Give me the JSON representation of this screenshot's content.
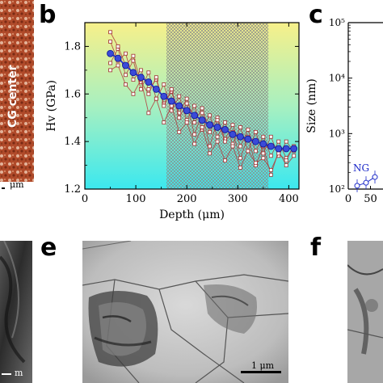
{
  "panels": {
    "a": {
      "overlay_text": "CG center",
      "scalebar_label": "μm"
    },
    "b": {
      "letter": "b",
      "chart_data": {
        "type": "line",
        "xlabel": "Depth (μm)",
        "ylabel": "Hv (GPa)",
        "xlim": [
          0,
          420
        ],
        "ylim": [
          1.2,
          1.9
        ],
        "x_ticks": [
          "0",
          "100",
          "200",
          "300",
          "400"
        ],
        "y_ticks": [
          "1.2",
          "1.4",
          "1.6",
          "1.8"
        ],
        "shaded_region": [
          160,
          360
        ],
        "series": [
          {
            "role": "average",
            "x": [
              50,
              65,
              80,
              95,
              110,
              125,
              140,
              155,
              170,
              185,
              200,
              215,
              230,
              245,
              260,
              275,
              290,
              305,
              320,
              335,
              350,
              365,
              380,
              395,
              410
            ],
            "values": [
              1.77,
              1.75,
              1.72,
              1.69,
              1.67,
              1.65,
              1.62,
              1.59,
              1.57,
              1.55,
              1.53,
              1.51,
              1.49,
              1.47,
              1.46,
              1.45,
              1.43,
              1.42,
              1.41,
              1.4,
              1.39,
              1.38,
              1.37,
              1.37,
              1.37
            ]
          },
          {
            "role": "individual",
            "x": [
              50,
              65,
              80,
              95,
              110,
              125,
              140,
              155,
              170,
              185,
              200,
              215,
              230,
              245,
              260,
              275,
              290,
              305,
              320,
              335,
              350,
              365,
              380,
              395,
              410
            ],
            "values": [
              1.82,
              1.74,
              1.77,
              1.66,
              1.7,
              1.62,
              1.66,
              1.56,
              1.61,
              1.52,
              1.58,
              1.48,
              1.54,
              1.44,
              1.5,
              1.41,
              1.47,
              1.38,
              1.45,
              1.36,
              1.42,
              1.34,
              1.4,
              1.33,
              1.38
            ]
          },
          {
            "role": "individual",
            "x": [
              50,
              65,
              80,
              95,
              110,
              125,
              140,
              155,
              170,
              185,
              200,
              215,
              230,
              245,
              260,
              275,
              290,
              305,
              320,
              335,
              350,
              365,
              380,
              395,
              410
            ],
            "values": [
              1.73,
              1.79,
              1.68,
              1.74,
              1.62,
              1.69,
              1.58,
              1.64,
              1.53,
              1.59,
              1.49,
              1.55,
              1.45,
              1.51,
              1.42,
              1.48,
              1.39,
              1.46,
              1.36,
              1.44,
              1.35,
              1.42,
              1.34,
              1.4,
              1.36
            ]
          },
          {
            "role": "individual",
            "x": [
              50,
              65,
              80,
              95,
              110,
              125,
              140,
              155,
              170,
              185,
              200,
              215,
              230,
              245,
              260,
              275,
              290,
              305,
              320,
              335,
              350,
              365,
              380,
              395,
              410
            ],
            "values": [
              1.86,
              1.8,
              1.72,
              1.76,
              1.65,
              1.6,
              1.67,
              1.55,
              1.62,
              1.5,
              1.56,
              1.43,
              1.52,
              1.38,
              1.49,
              1.4,
              1.44,
              1.33,
              1.42,
              1.3,
              1.38,
              1.26,
              1.36,
              1.3,
              1.34
            ]
          },
          {
            "role": "individual",
            "x": [
              50,
              65,
              80,
              95,
              110,
              125,
              140,
              155,
              170,
              185,
              200,
              215,
              230,
              245,
              260,
              275,
              290,
              305,
              320,
              335,
              350,
              365,
              380,
              395,
              410
            ],
            "values": [
              1.7,
              1.72,
              1.64,
              1.6,
              1.66,
              1.52,
              1.58,
              1.48,
              1.55,
              1.44,
              1.48,
              1.39,
              1.46,
              1.35,
              1.4,
              1.32,
              1.38,
              1.29,
              1.36,
              1.31,
              1.33,
              1.28,
              1.35,
              1.32,
              1.38
            ]
          }
        ]
      }
    },
    "c": {
      "letter": "c",
      "chart_data": {
        "type": "scatter",
        "xlabel": "",
        "ylabel": "Size (nm)",
        "yscale": "log",
        "ylim": [
          100,
          100000
        ],
        "y_ticks": [
          "10²",
          "10³",
          "10⁴",
          "10⁵"
        ],
        "x_ticks": [
          "0",
          "50"
        ],
        "annotation": "NG",
        "points": [
          {
            "x": 20,
            "y": 115
          },
          {
            "x": 40,
            "y": 130
          },
          {
            "x": 60,
            "y": 165
          }
        ]
      }
    },
    "e": {
      "letter": "e",
      "scalebar_label": "1 μm"
    },
    "f": {
      "letter": "f"
    },
    "d": {
      "scalebar_label": "m"
    },
    "colors": {
      "avg_line": "#1f2fd6",
      "avg_marker": "#3a4ad8",
      "indiv_line": "#b23a3a",
      "indiv_marker_edge": "#a03030",
      "grad_top": "#f7f08a",
      "grad_bottom": "#3be8ef",
      "c_points": "#1a28c8"
    }
  }
}
